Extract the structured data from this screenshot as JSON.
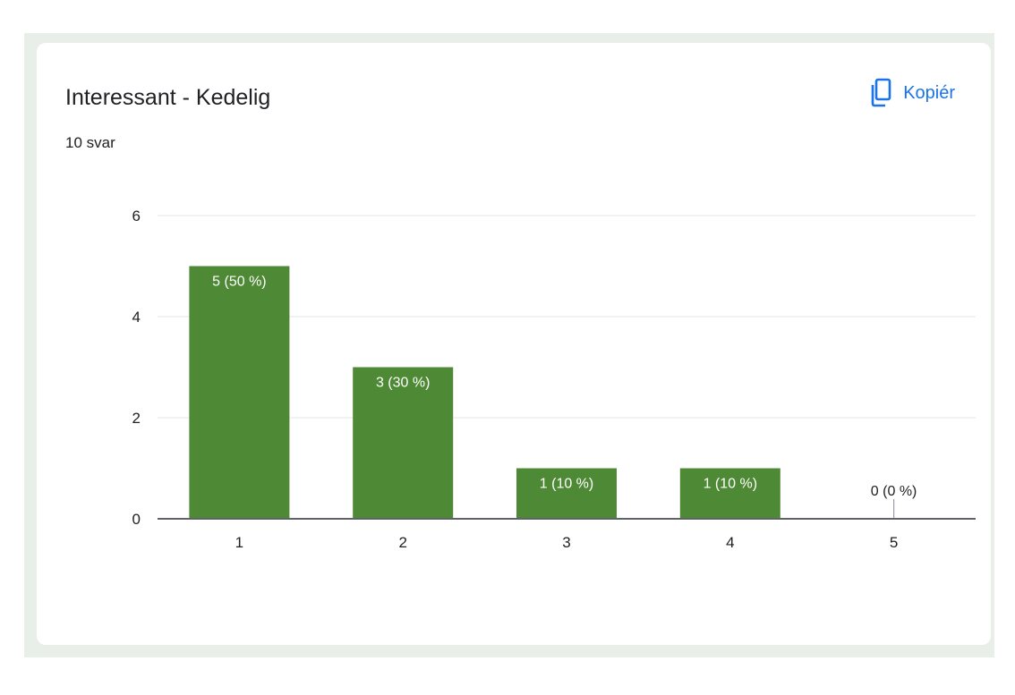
{
  "card": {
    "title": "Interessant - Kedelig",
    "subtitle": "10 svar",
    "copy_label": "Kopiér",
    "copy_icon": "copy-icon"
  },
  "colors": {
    "bar": "#4e8a35",
    "accent": "#1a73e8",
    "grid": "#eeeeee",
    "axis": "#5f6368",
    "text": "#202124",
    "background": "#e8eee8"
  },
  "chart_data": {
    "type": "bar",
    "categories": [
      "1",
      "2",
      "3",
      "4",
      "5"
    ],
    "values": [
      5,
      3,
      1,
      1,
      0
    ],
    "data_labels": [
      "5 (50 %)",
      "3 (30 %)",
      "1 (10 %)",
      "1 (10 %)",
      "0 (0 %)"
    ],
    "ylim": [
      0,
      6
    ],
    "yticks": [
      0,
      2,
      4,
      6
    ],
    "grid": true,
    "xlabel": "",
    "ylabel": ""
  }
}
